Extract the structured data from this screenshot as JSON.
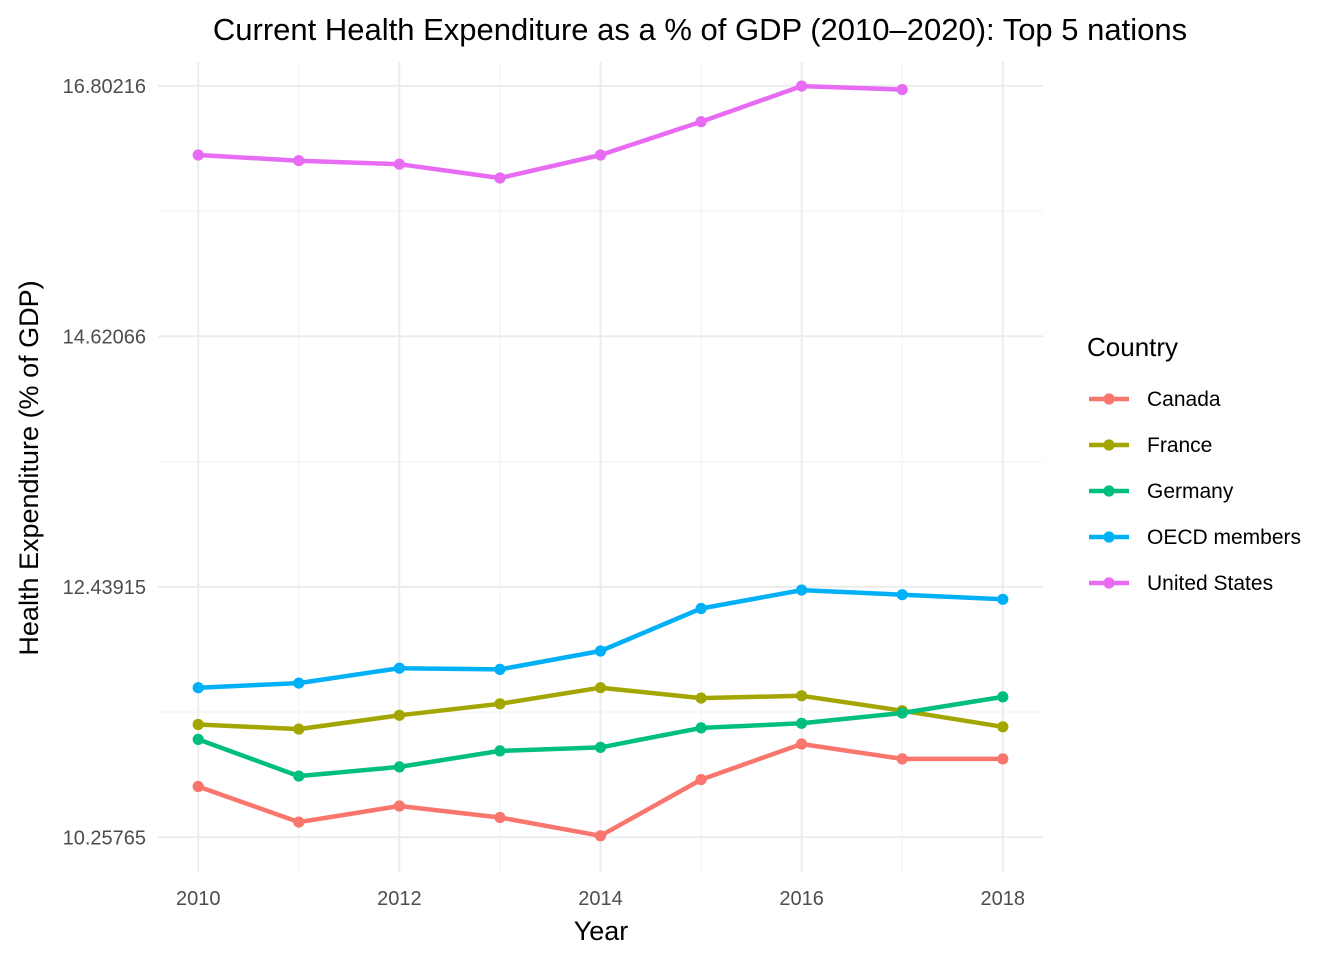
{
  "chart_data": {
    "type": "line",
    "title": "Current Health Expenditure as a % of GDP (2010–2020): Top 5 nations",
    "xlabel": "Year",
    "ylabel": "Health Expenditure (% of GDP)",
    "x": [
      2010,
      2011,
      2012,
      2013,
      2014,
      2015,
      2016,
      2017,
      2018
    ],
    "xlim": [
      2009.6,
      2018.4
    ],
    "ylim": [
      9.955,
      17.01
    ],
    "x_ticks": [
      2010,
      2012,
      2014,
      2016,
      2018
    ],
    "x_tick_labels": [
      "2010",
      "2012",
      "2014",
      "2016",
      "2018"
    ],
    "y_ticks": [
      10.25765,
      12.43915,
      14.62066,
      16.80216
    ],
    "y_tick_labels": [
      "10.25765",
      "12.43915",
      "14.62066",
      "16.80216"
    ],
    "grid": true,
    "legend": {
      "title": "Country",
      "position": "right"
    },
    "series": [
      {
        "name": "Canada",
        "color": "#F8766D",
        "values": [
          10.7,
          10.39,
          10.53,
          10.43,
          10.27,
          10.76,
          11.07,
          10.94,
          10.94
        ]
      },
      {
        "name": "France",
        "color": "#A3A500",
        "values": [
          11.24,
          11.2,
          11.32,
          11.42,
          11.56,
          11.47,
          11.49,
          11.36,
          11.22
        ]
      },
      {
        "name": "Germany",
        "color": "#00BF7D",
        "values": [
          11.11,
          10.79,
          10.87,
          11.01,
          11.04,
          11.21,
          11.25,
          11.34,
          11.48
        ]
      },
      {
        "name": "OECD members",
        "color": "#00B0F6",
        "values": [
          11.56,
          11.6,
          11.73,
          11.72,
          11.88,
          12.25,
          12.41,
          12.37,
          12.33
        ]
      },
      {
        "name": "United States",
        "color": "#E76BF3",
        "values": [
          16.2,
          16.15,
          16.12,
          16.0,
          16.2,
          16.49,
          16.8,
          16.77,
          null
        ]
      }
    ]
  }
}
